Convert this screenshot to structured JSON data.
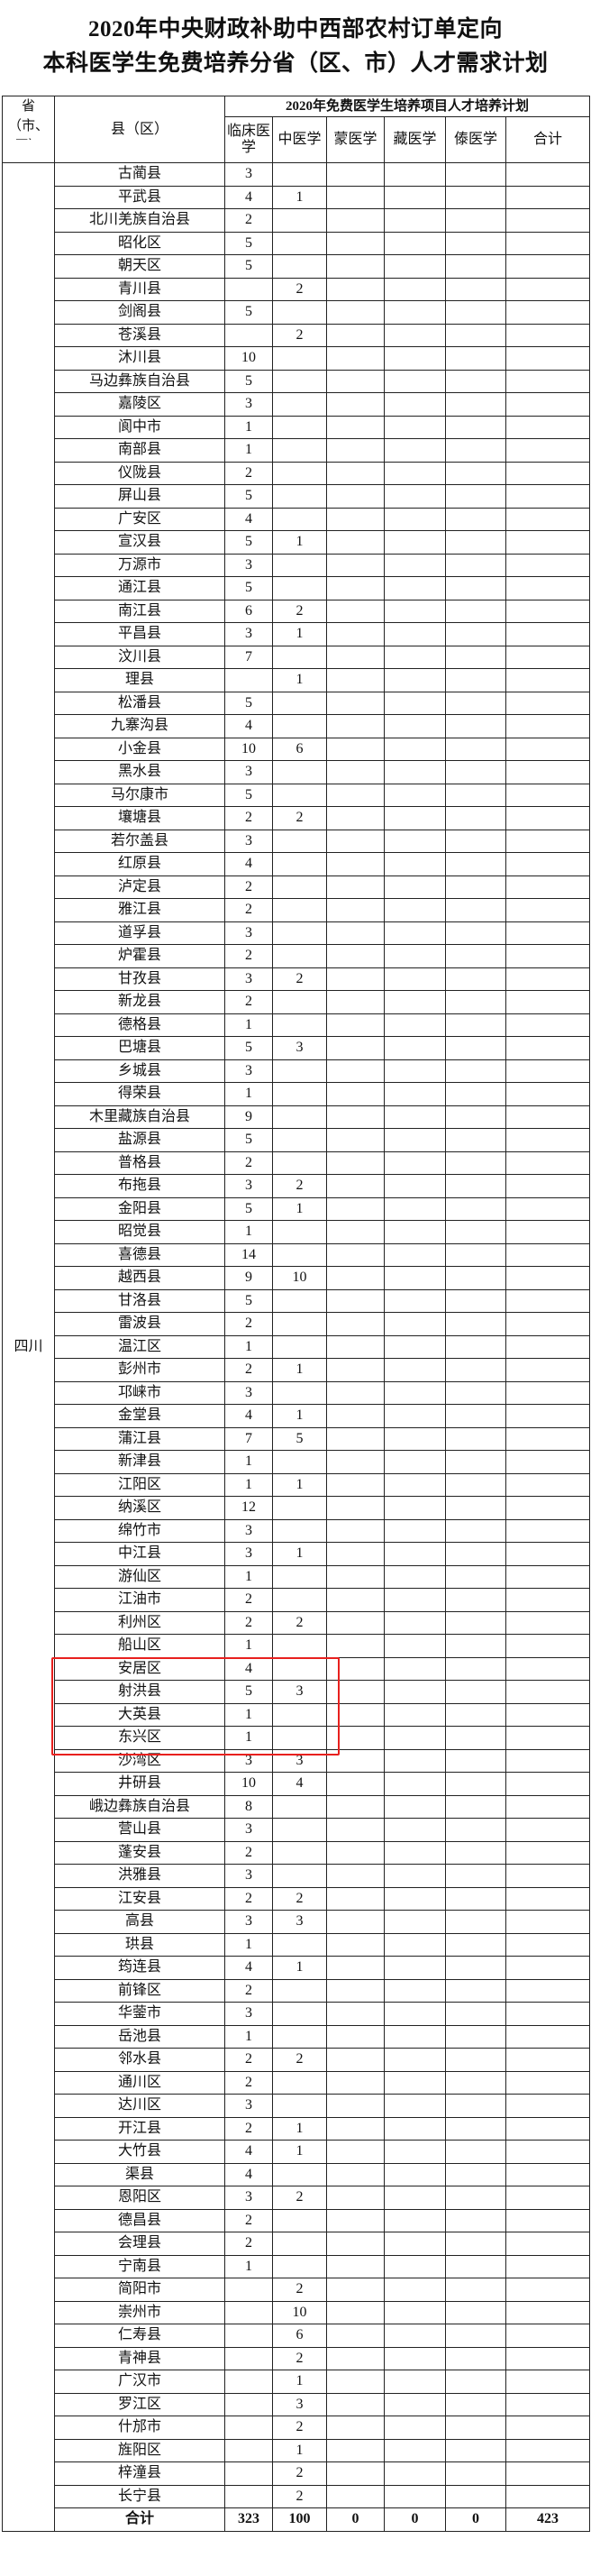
{
  "title": {
    "line1": "2020年中央财政补助中西部农村订单定向",
    "line2": "本科医学生免费培养分省（区、市）人才需求计划"
  },
  "table": {
    "province_header": "省（市、区）",
    "county_header": "县（区）",
    "plan_header": "2020年免费医学生培养项目人才培养计划",
    "columns": [
      "临床医学",
      "中医学",
      "蒙医学",
      "藏医学",
      "傣医学",
      "合计"
    ],
    "province": "四川",
    "rows": [
      [
        "古蔺县",
        "3",
        ""
      ],
      [
        "平武县",
        "4",
        "1"
      ],
      [
        "北川羌族自治县",
        "2",
        ""
      ],
      [
        "昭化区",
        "5",
        ""
      ],
      [
        "朝天区",
        "5",
        ""
      ],
      [
        "青川县",
        "",
        "2"
      ],
      [
        "剑阁县",
        "5",
        ""
      ],
      [
        "苍溪县",
        "",
        "2"
      ],
      [
        "沐川县",
        "10",
        ""
      ],
      [
        "马边彝族自治县",
        "5",
        ""
      ],
      [
        "嘉陵区",
        "3",
        ""
      ],
      [
        "阆中市",
        "1",
        ""
      ],
      [
        "南部县",
        "1",
        ""
      ],
      [
        "仪陇县",
        "2",
        ""
      ],
      [
        "屏山县",
        "5",
        ""
      ],
      [
        "广安区",
        "4",
        ""
      ],
      [
        "宣汉县",
        "5",
        "1"
      ],
      [
        "万源市",
        "3",
        ""
      ],
      [
        "通江县",
        "5",
        ""
      ],
      [
        "南江县",
        "6",
        "2"
      ],
      [
        "平昌县",
        "3",
        "1"
      ],
      [
        "汶川县",
        "7",
        ""
      ],
      [
        "理县",
        "",
        "1"
      ],
      [
        "松潘县",
        "5",
        ""
      ],
      [
        "九寨沟县",
        "4",
        ""
      ],
      [
        "小金县",
        "10",
        "6"
      ],
      [
        "黑水县",
        "3",
        ""
      ],
      [
        "马尔康市",
        "5",
        ""
      ],
      [
        "壤塘县",
        "2",
        "2"
      ],
      [
        "若尔盖县",
        "3",
        ""
      ],
      [
        "红原县",
        "4",
        ""
      ],
      [
        "泸定县",
        "2",
        ""
      ],
      [
        "雅江县",
        "2",
        ""
      ],
      [
        "道孚县",
        "3",
        ""
      ],
      [
        "炉霍县",
        "2",
        ""
      ],
      [
        "甘孜县",
        "3",
        "2"
      ],
      [
        "新龙县",
        "2",
        ""
      ],
      [
        "德格县",
        "1",
        ""
      ],
      [
        "巴塘县",
        "5",
        "3"
      ],
      [
        "乡城县",
        "3",
        ""
      ],
      [
        "得荣县",
        "1",
        ""
      ],
      [
        "木里藏族自治县",
        "9",
        ""
      ],
      [
        "盐源县",
        "5",
        ""
      ],
      [
        "普格县",
        "2",
        ""
      ],
      [
        "布拖县",
        "3",
        "2"
      ],
      [
        "金阳县",
        "5",
        "1"
      ],
      [
        "昭觉县",
        "1",
        ""
      ],
      [
        "喜德县",
        "14",
        ""
      ],
      [
        "越西县",
        "9",
        "10"
      ],
      [
        "甘洛县",
        "5",
        ""
      ],
      [
        "雷波县",
        "2",
        ""
      ],
      [
        "温江区",
        "1",
        ""
      ],
      [
        "彭州市",
        "2",
        "1"
      ],
      [
        "邛崃市",
        "3",
        ""
      ],
      [
        "金堂县",
        "4",
        "1"
      ],
      [
        "蒲江县",
        "7",
        "5"
      ],
      [
        "新津县",
        "1",
        ""
      ],
      [
        "江阳区",
        "1",
        "1"
      ],
      [
        "纳溪区",
        "12",
        ""
      ],
      [
        "绵竹市",
        "3",
        ""
      ],
      [
        "中江县",
        "3",
        "1"
      ],
      [
        "游仙区",
        "1",
        ""
      ],
      [
        "江油市",
        "2",
        ""
      ],
      [
        "利州区",
        "2",
        "2"
      ],
      [
        "船山区",
        "1",
        ""
      ],
      [
        "安居区",
        "4",
        ""
      ],
      [
        "射洪县",
        "5",
        "3"
      ],
      [
        "大英县",
        "1",
        ""
      ],
      [
        "东兴区",
        "1",
        ""
      ],
      [
        "沙湾区",
        "3",
        "3"
      ],
      [
        "井研县",
        "10",
        "4"
      ],
      [
        "峨边彝族自治县",
        "8",
        ""
      ],
      [
        "营山县",
        "3",
        ""
      ],
      [
        "蓬安县",
        "2",
        ""
      ],
      [
        "洪雅县",
        "3",
        ""
      ],
      [
        "江安县",
        "2",
        "2"
      ],
      [
        "高县",
        "3",
        "3"
      ],
      [
        "珙县",
        "1",
        ""
      ],
      [
        "筠连县",
        "4",
        "1"
      ],
      [
        "前锋区",
        "2",
        ""
      ],
      [
        "华蓥市",
        "3",
        ""
      ],
      [
        "岳池县",
        "1",
        ""
      ],
      [
        "邻水县",
        "2",
        "2"
      ],
      [
        "通川区",
        "2",
        ""
      ],
      [
        "达川区",
        "3",
        ""
      ],
      [
        "开江县",
        "2",
        "1"
      ],
      [
        "大竹县",
        "4",
        "1"
      ],
      [
        "渠县",
        "4",
        ""
      ],
      [
        "恩阳区",
        "3",
        "2"
      ],
      [
        "德昌县",
        "2",
        ""
      ],
      [
        "会理县",
        "2",
        ""
      ],
      [
        "宁南县",
        "1",
        ""
      ],
      [
        "简阳市",
        "",
        "2"
      ],
      [
        "崇州市",
        "",
        "10"
      ],
      [
        "仁寿县",
        "",
        "6"
      ],
      [
        "青神县",
        "",
        "2"
      ],
      [
        "广汉市",
        "",
        "1"
      ],
      [
        "罗江区",
        "",
        "3"
      ],
      [
        "什邡市",
        "",
        "2"
      ],
      [
        "旌阳区",
        "",
        "1"
      ],
      [
        "梓潼县",
        "",
        "2"
      ],
      [
        "长宁县",
        "",
        "2"
      ]
    ],
    "total": {
      "label": "合计",
      "values": [
        "323",
        "100",
        "0",
        "0",
        "0",
        "423"
      ]
    }
  },
  "highlight_color": "#e8201e"
}
